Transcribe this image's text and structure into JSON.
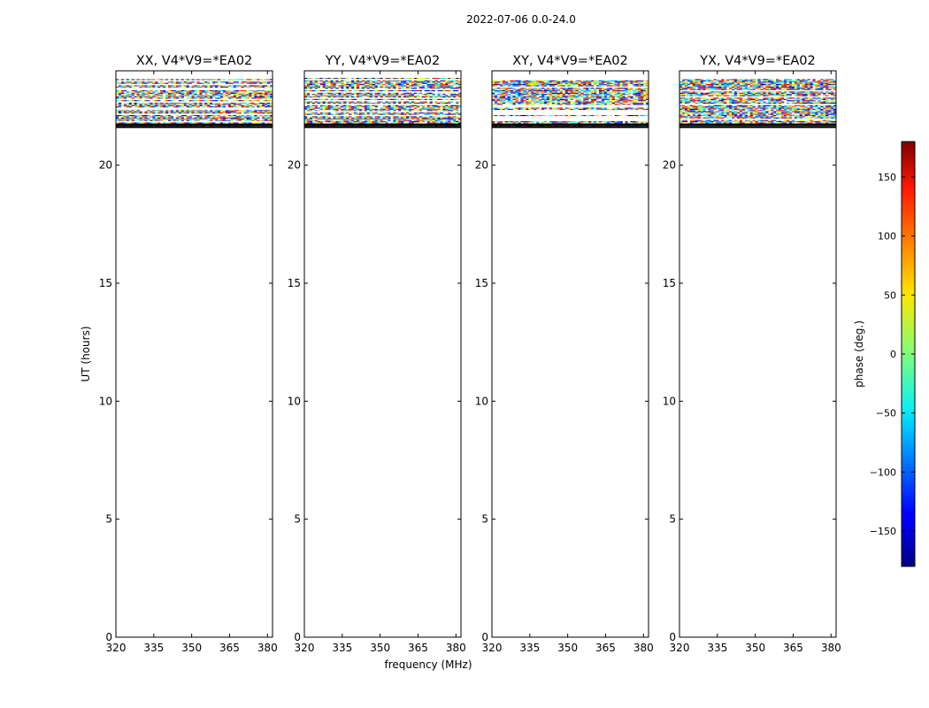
{
  "chart_data": {
    "type": "heatmap",
    "title": "2022-07-06 0.0-24.0",
    "xlabel": "frequency (MHz)",
    "ylabel": "UT (hours)",
    "xlim": [
      320,
      382
    ],
    "ylim": [
      0,
      24
    ],
    "xticks": [
      "320",
      "335",
      "350",
      "365",
      "380"
    ],
    "yticks": [
      "0",
      "5",
      "10",
      "15",
      "20"
    ],
    "panels": [
      {
        "title": "XX, V4*V9=*EA02",
        "pol": "XX"
      },
      {
        "title": "YY, V4*V9=*EA02",
        "pol": "YY"
      },
      {
        "title": "XY, V4*V9=*EA02",
        "pol": "XY"
      },
      {
        "title": "YX, V4*V9=*EA02",
        "pol": "YX"
      }
    ],
    "data_ut_range": [
      21.6,
      23.7
    ],
    "colorbar": {
      "label": "phase (deg.)",
      "range": [
        -180,
        180
      ],
      "ticks": [
        "150",
        "100",
        "50",
        "0",
        "−50",
        "−100",
        "−150"
      ],
      "tick_values": [
        150,
        100,
        50,
        0,
        -50,
        -100,
        -150
      ],
      "colormap": "jet"
    }
  }
}
